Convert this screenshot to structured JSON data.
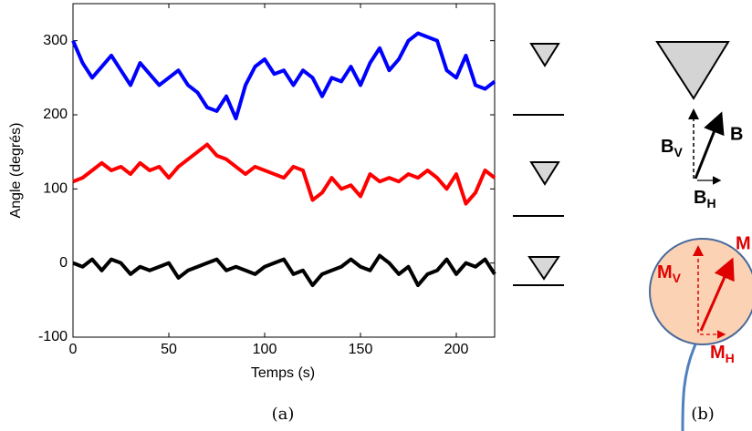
{
  "chart_data": {
    "type": "line",
    "x_label": "Temps (s)",
    "y_label": "Angle (degrés)",
    "x": [
      0,
      5,
      10,
      15,
      20,
      25,
      30,
      35,
      40,
      45,
      50,
      55,
      60,
      65,
      70,
      75,
      80,
      85,
      90,
      95,
      100,
      105,
      110,
      115,
      120,
      125,
      130,
      135,
      140,
      145,
      150,
      155,
      160,
      165,
      170,
      175,
      180,
      185,
      190,
      195,
      200,
      205,
      210,
      215,
      220
    ],
    "series": [
      {
        "color": "#0000ff",
        "values": [
          300,
          270,
          250,
          265,
          280,
          260,
          240,
          270,
          255,
          240,
          250,
          260,
          240,
          230,
          210,
          205,
          225,
          195,
          240,
          265,
          275,
          255,
          260,
          240,
          260,
          250,
          225,
          250,
          245,
          265,
          240,
          270,
          290,
          260,
          275,
          300,
          310,
          305,
          300,
          260,
          250,
          280,
          240,
          235,
          245
        ]
      },
      {
        "color": "#ff0000",
        "values": [
          110,
          115,
          125,
          135,
          125,
          130,
          120,
          135,
          125,
          130,
          115,
          130,
          140,
          150,
          160,
          145,
          140,
          130,
          120,
          130,
          125,
          120,
          115,
          130,
          125,
          85,
          95,
          115,
          100,
          105,
          90,
          120,
          110,
          115,
          110,
          120,
          115,
          125,
          115,
          100,
          120,
          80,
          95,
          125,
          115
        ]
      },
      {
        "color": "#000000",
        "values": [
          0,
          -5,
          5,
          -10,
          5,
          0,
          -15,
          -5,
          -10,
          -5,
          0,
          -20,
          -10,
          -5,
          0,
          5,
          -10,
          -5,
          -10,
          -15,
          -5,
          0,
          5,
          -15,
          -10,
          -30,
          -15,
          -10,
          -5,
          5,
          -5,
          -10,
          10,
          0,
          -15,
          -5,
          -30,
          -15,
          -10,
          5,
          -15,
          0,
          -5,
          5,
          -15
        ]
      }
    ],
    "xlim": [
      0,
      220
    ],
    "xticks": [
      0,
      50,
      100,
      150,
      200
    ],
    "ylim": [
      -100,
      350
    ],
    "yticks": [
      -100,
      0,
      100,
      200,
      300
    ]
  },
  "panel_labels": [
    "(a)",
    "(b)"
  ],
  "diagram": {
    "B": "B",
    "V": "V",
    "H": "H",
    "M": "M"
  }
}
